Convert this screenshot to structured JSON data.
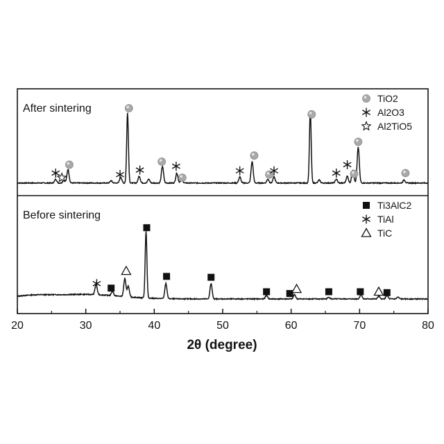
{
  "chart_data": {
    "type": "line",
    "xlabel": "2θ (degree)",
    "xlim": [
      20,
      80
    ],
    "xticks": [
      20,
      30,
      40,
      50,
      60,
      70,
      80
    ],
    "ylabel": "",
    "panels": [
      {
        "id": "after",
        "label": "After sintering",
        "baseline": 0.02,
        "noise": 0.012,
        "peaks": [
          {
            "x": 25.6,
            "h": 0.05
          },
          {
            "x": 26.8,
            "h": 0.04
          },
          {
            "x": 27.4,
            "h": 0.18
          },
          {
            "x": 33.7,
            "h": 0.03
          },
          {
            "x": 35.1,
            "h": 0.08
          },
          {
            "x": 36.1,
            "h": 0.92
          },
          {
            "x": 37.8,
            "h": 0.09
          },
          {
            "x": 39.2,
            "h": 0.05
          },
          {
            "x": 41.2,
            "h": 0.22
          },
          {
            "x": 43.3,
            "h": 0.13
          },
          {
            "x": 44.0,
            "h": 0.06
          },
          {
            "x": 52.5,
            "h": 0.08
          },
          {
            "x": 54.3,
            "h": 0.28
          },
          {
            "x": 56.6,
            "h": 0.05
          },
          {
            "x": 57.5,
            "h": 0.08
          },
          {
            "x": 62.8,
            "h": 0.95
          },
          {
            "x": 64.1,
            "h": 0.04
          },
          {
            "x": 66.6,
            "h": 0.05
          },
          {
            "x": 68.2,
            "h": 0.09
          },
          {
            "x": 69.0,
            "h": 0.17
          },
          {
            "x": 69.8,
            "h": 0.47
          },
          {
            "x": 76.5,
            "h": 0.04
          }
        ],
        "markers": [
          {
            "x": 25.6,
            "symbol": "asterisk",
            "level": 0.15
          },
          {
            "x": 26.5,
            "symbol": "star",
            "level": 0.09
          },
          {
            "x": 27.6,
            "symbol": "circle",
            "level": 0.26
          },
          {
            "x": 35.0,
            "symbol": "asterisk",
            "level": 0.13
          },
          {
            "x": 36.3,
            "symbol": "circle",
            "level": 1.0
          },
          {
            "x": 37.9,
            "symbol": "asterisk",
            "level": 0.19
          },
          {
            "x": 41.1,
            "symbol": "circle",
            "level": 0.3
          },
          {
            "x": 43.2,
            "symbol": "asterisk",
            "level": 0.24
          },
          {
            "x": 44.1,
            "symbol": "circle",
            "level": 0.09
          },
          {
            "x": 52.5,
            "symbol": "asterisk",
            "level": 0.18
          },
          {
            "x": 54.6,
            "symbol": "circle",
            "level": 0.38
          },
          {
            "x": 56.8,
            "symbol": "circle",
            "level": 0.13
          },
          {
            "x": 57.5,
            "symbol": "asterisk",
            "level": 0.18
          },
          {
            "x": 63.0,
            "symbol": "circle",
            "level": 0.92
          },
          {
            "x": 66.6,
            "symbol": "asterisk",
            "level": 0.15
          },
          {
            "x": 68.2,
            "symbol": "asterisk",
            "level": 0.26
          },
          {
            "x": 69.2,
            "symbol": "circle",
            "level": 0.14
          },
          {
            "x": 69.8,
            "symbol": "circle",
            "level": 0.56
          },
          {
            "x": 76.7,
            "symbol": "circle",
            "level": 0.15
          }
        ],
        "legend": [
          {
            "symbol": "circle",
            "label": "TiO2"
          },
          {
            "symbol": "asterisk",
            "label": "Al2O3"
          },
          {
            "symbol": "star",
            "label": "Al2TiO5"
          }
        ]
      },
      {
        "id": "before",
        "label": "Before sintering",
        "baseline": 0.07,
        "noise": 0.01,
        "peaks": [
          {
            "x": 31.5,
            "h": 0.12
          },
          {
            "x": 33.9,
            "h": 0.05
          },
          {
            "x": 35.7,
            "h": 0.2
          },
          {
            "x": 36.2,
            "h": 0.12
          },
          {
            "x": 38.8,
            "h": 0.74
          },
          {
            "x": 41.7,
            "h": 0.17
          },
          {
            "x": 48.3,
            "h": 0.17
          },
          {
            "x": 56.4,
            "h": 0.04
          },
          {
            "x": 60.5,
            "h": 0.05
          },
          {
            "x": 65.5,
            "h": 0.02
          },
          {
            "x": 70.2,
            "h": 0.05
          },
          {
            "x": 72.8,
            "h": 0.03
          },
          {
            "x": 74.0,
            "h": 0.04
          },
          {
            "x": 75.6,
            "h": 0.02
          }
        ],
        "markers": [
          {
            "x": 31.6,
            "symbol": "asterisk",
            "level": 0.24
          },
          {
            "x": 33.7,
            "symbol": "square",
            "level": 0.19
          },
          {
            "x": 35.9,
            "symbol": "triangle",
            "level": 0.38
          },
          {
            "x": 38.9,
            "symbol": "square",
            "level": 0.86
          },
          {
            "x": 41.8,
            "symbol": "square",
            "level": 0.32
          },
          {
            "x": 48.3,
            "symbol": "square",
            "level": 0.31
          },
          {
            "x": 56.4,
            "symbol": "square",
            "level": 0.15
          },
          {
            "x": 59.8,
            "symbol": "square",
            "level": 0.13
          },
          {
            "x": 60.8,
            "symbol": "triangle",
            "level": 0.18
          },
          {
            "x": 65.5,
            "symbol": "square",
            "level": 0.15
          },
          {
            "x": 70.1,
            "symbol": "square",
            "level": 0.15
          },
          {
            "x": 72.8,
            "symbol": "triangle",
            "level": 0.15
          },
          {
            "x": 74.0,
            "symbol": "square",
            "level": 0.14
          }
        ],
        "legend": [
          {
            "symbol": "square",
            "label": "Ti3AlC2"
          },
          {
            "symbol": "asterisk",
            "label": "TiAl"
          },
          {
            "symbol": "triangle",
            "label": "TiC"
          }
        ]
      }
    ]
  }
}
